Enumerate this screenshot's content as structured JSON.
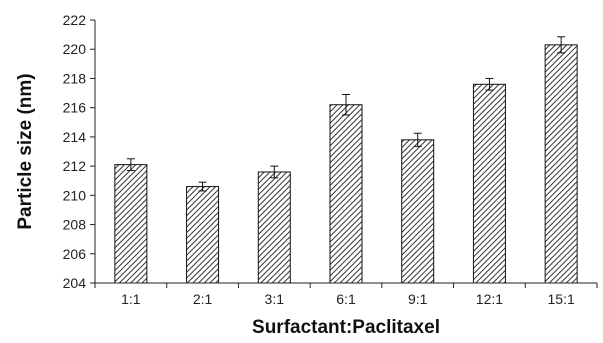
{
  "chart_data": {
    "type": "bar",
    "xlabel": "Surfactant:Paclitaxel",
    "ylabel": "Particle size (nm)",
    "categories": [
      "1:1",
      "2:1",
      "3:1",
      "6:1",
      "9:1",
      "12:1",
      "15:1"
    ],
    "values": [
      212.1,
      210.6,
      211.6,
      216.2,
      213.8,
      217.6,
      220.3
    ],
    "error": [
      0.4,
      0.3,
      0.4,
      0.7,
      0.45,
      0.4,
      0.55
    ],
    "ylim": [
      204,
      222
    ],
    "yticks": [
      204,
      206,
      208,
      210,
      212,
      214,
      216,
      218,
      220,
      222
    ],
    "grid": false,
    "legend": "none",
    "bar_fill": "diagonal-hatch",
    "colors": {
      "bar_stroke": "#111111",
      "hatch": "#333333",
      "axis": "#222222"
    }
  }
}
